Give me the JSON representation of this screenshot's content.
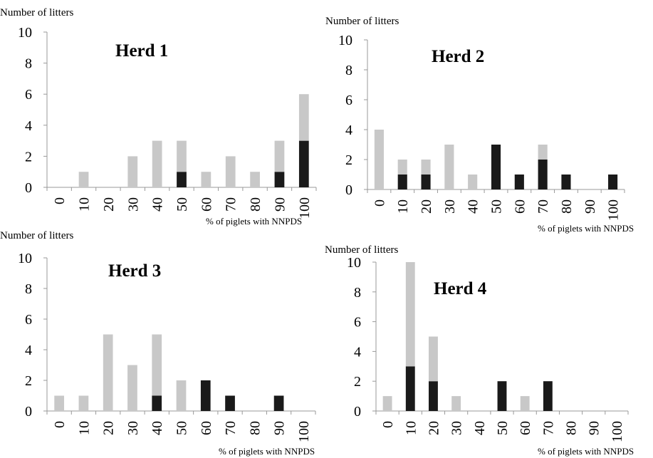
{
  "colors": {
    "below_threshold": "#c8c8c8",
    "above_threshold": "#1a1a1a",
    "axis": "#999999"
  },
  "chart_data": [
    {
      "type": "bar",
      "title": "Herd 1",
      "ylabel": "Number of litters",
      "xlabel": "% of piglets with NNPDS",
      "categories": [
        "0",
        "10",
        "20",
        "30",
        "40",
        "50",
        "60",
        "70",
        "80",
        "90",
        "100"
      ],
      "ylim": [
        0,
        10
      ],
      "yticks": [
        "0",
        "2",
        "4",
        "6",
        "8",
        "10"
      ],
      "stacked": true,
      "series": [
        {
          "values": [
            0,
            0,
            0,
            0,
            0,
            1,
            0,
            0,
            0,
            1,
            3
          ]
        },
        {
          "values": [
            0,
            1,
            0,
            2,
            3,
            2,
            1,
            2,
            1,
            2,
            3
          ]
        }
      ]
    },
    {
      "type": "bar",
      "title": "Herd 2",
      "ylabel": "Number of litters",
      "xlabel": "% of piglets with NNPDS",
      "categories": [
        "0",
        "10",
        "20",
        "30",
        "40",
        "50",
        "60",
        "70",
        "80",
        "90",
        "100"
      ],
      "ylim": [
        0,
        10
      ],
      "yticks": [
        "0",
        "2",
        "4",
        "6",
        "8",
        "10"
      ],
      "stacked": true,
      "series": [
        {
          "values": [
            0,
            1,
            1,
            0,
            0,
            3,
            1,
            2,
            1,
            0,
            1
          ]
        },
        {
          "values": [
            4,
            1,
            1,
            3,
            1,
            0,
            0,
            1,
            0,
            0,
            0
          ]
        }
      ]
    },
    {
      "type": "bar",
      "title": "Herd 3",
      "ylabel": "Number of litters",
      "xlabel": "% of piglets with NNPDS",
      "categories": [
        "0",
        "10",
        "20",
        "30",
        "40",
        "50",
        "60",
        "70",
        "80",
        "90",
        "100"
      ],
      "ylim": [
        0,
        10
      ],
      "yticks": [
        "0",
        "2",
        "4",
        "6",
        "8",
        "10"
      ],
      "stacked": true,
      "series": [
        {
          "values": [
            0,
            0,
            0,
            0,
            1,
            0,
            2,
            1,
            0,
            1,
            0
          ]
        },
        {
          "values": [
            1,
            1,
            5,
            3,
            4,
            2,
            0,
            0,
            0,
            0,
            0
          ]
        }
      ]
    },
    {
      "type": "bar",
      "title": "Herd 4",
      "ylabel": "Number of litters",
      "xlabel": "% of piglets with NNPDS",
      "categories": [
        "0",
        "10",
        "20",
        "30",
        "40",
        "50",
        "60",
        "70",
        "80",
        "90",
        "100"
      ],
      "ylim": [
        0,
        10
      ],
      "yticks": [
        "0",
        "2",
        "4",
        "6",
        "8",
        "10"
      ],
      "stacked": true,
      "series": [
        {
          "values": [
            0,
            3,
            2,
            0,
            0,
            2,
            0,
            2,
            0,
            0,
            0
          ]
        },
        {
          "values": [
            1,
            7,
            3,
            1,
            0,
            0,
            1,
            0,
            0,
            0,
            0
          ]
        }
      ]
    }
  ]
}
